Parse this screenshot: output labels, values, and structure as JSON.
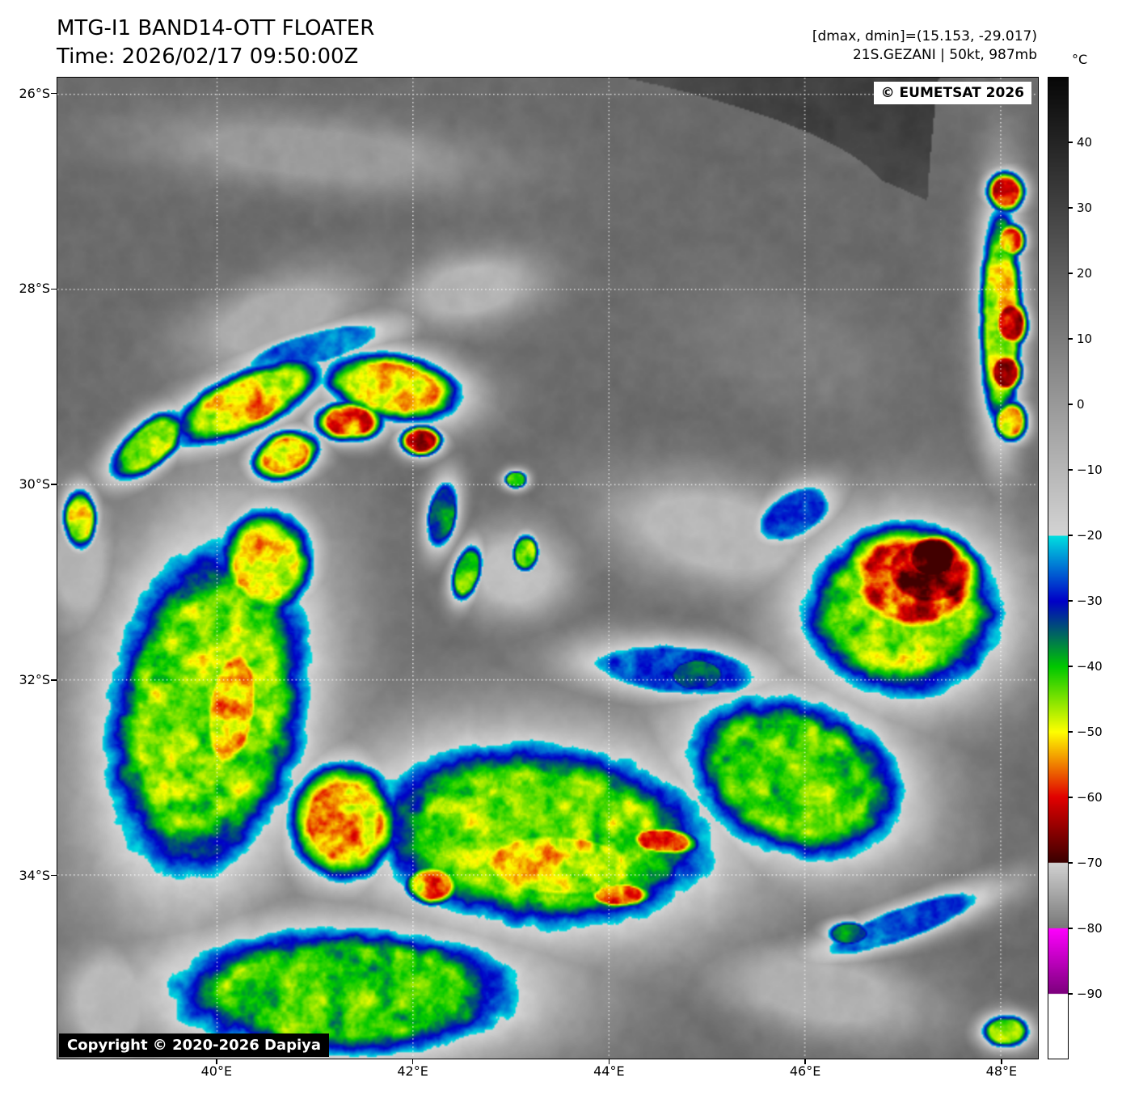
{
  "header": {
    "title": "MTG-I1 BAND14-OTT FLOATER",
    "time_line": "Time: 2026/02/17 09:50:00Z",
    "dmax_dmin": "[dmax, dmin]=(15.153, -29.017)",
    "storm_info": "21S.GEZANI | 50kt, 987mb"
  },
  "map": {
    "eumetsat_credit": "© EUMETSAT 2026",
    "copyright": "Copyright © 2020-2026 Dapiya",
    "lat_ticks": [
      {
        "v": 26,
        "label": "26°S"
      },
      {
        "v": 28,
        "label": "28°S"
      },
      {
        "v": 30,
        "label": "30°S"
      },
      {
        "v": 32,
        "label": "32°S"
      },
      {
        "v": 34,
        "label": "34°S"
      }
    ],
    "lon_ticks": [
      {
        "v": 40,
        "label": "40°E"
      },
      {
        "v": 42,
        "label": "42°E"
      },
      {
        "v": 44,
        "label": "44°E"
      },
      {
        "v": 46,
        "label": "46°E"
      },
      {
        "v": 48,
        "label": "48°E"
      }
    ]
  },
  "colorbar": {
    "unit": "°C",
    "domain_top_c": 50,
    "domain_bottom_c": -100,
    "ticks": [
      {
        "v": 40,
        "label": "40"
      },
      {
        "v": 30,
        "label": "30"
      },
      {
        "v": 20,
        "label": "20"
      },
      {
        "v": 10,
        "label": "10"
      },
      {
        "v": 0,
        "label": "0"
      },
      {
        "v": -10,
        "label": "−10"
      },
      {
        "v": -20,
        "label": "−20"
      },
      {
        "v": -30,
        "label": "−30"
      },
      {
        "v": -40,
        "label": "−40"
      },
      {
        "v": -50,
        "label": "−50"
      },
      {
        "v": -60,
        "label": "−60"
      },
      {
        "v": -70,
        "label": "−70"
      },
      {
        "v": -80,
        "label": "−80"
      },
      {
        "v": -90,
        "label": "−90"
      }
    ],
    "segments": [
      {
        "from": 50,
        "to": -20,
        "start": "#080808",
        "end": "#d4d4d4"
      },
      {
        "from": -20,
        "to": -30,
        "start": "#00e0e0",
        "end": "#0000c8"
      },
      {
        "from": -30,
        "to": -40,
        "start": "#0000c8",
        "end": "#00c800"
      },
      {
        "from": -40,
        "to": -50,
        "start": "#00c800",
        "end": "#ffff00"
      },
      {
        "from": -50,
        "to": -60,
        "start": "#ffff00",
        "end": "#e10000"
      },
      {
        "from": -60,
        "to": -70,
        "start": "#e10000",
        "end": "#3a0000"
      },
      {
        "from": -70,
        "to": -80,
        "start": "#d2d2d2",
        "end": "#787878"
      },
      {
        "from": -80,
        "to": -90,
        "start": "#ff00ff",
        "end": "#7d007d"
      },
      {
        "from": -90,
        "to": -100,
        "start": "#ffffff",
        "end": "#ffffff"
      }
    ]
  },
  "chart_data": {
    "type": "heatmap",
    "subtype": "infrared-brightness-temperature",
    "title": "MTG-I1 BAND14-OTT FLOATER",
    "storm": "21S.GEZANI",
    "intensity": "50kt, 987mb",
    "extent": {
      "lon_min": 38.37,
      "lon_max": 48.38,
      "lat_s_min": 25.83,
      "lat_s_max": 35.88
    },
    "grid": "dotted white graticule every 2 degrees",
    "background_temp_c": 30,
    "temp_gradient_per_deg_lat": 1.2,
    "features": [
      {
        "lon": 41.0,
        "lat": 26.6,
        "rx": 2.4,
        "ry": 0.5,
        "rot": 5,
        "t": 0
      },
      {
        "lon": 40.6,
        "lat": 28.3,
        "rx": 1.3,
        "ry": 0.55,
        "rot": -20,
        "t": -6
      },
      {
        "lon": 42.6,
        "lat": 28.0,
        "rx": 1.0,
        "ry": 0.5,
        "rot": -10,
        "t": -9
      },
      {
        "lon": 45.8,
        "lat": 28.6,
        "rx": 1.6,
        "ry": 0.8,
        "rot": 20,
        "t": 10
      },
      {
        "lon": 45.1,
        "lat": 30.5,
        "rx": 1.6,
        "ry": 0.75,
        "rot": 12,
        "t": -10
      },
      {
        "lon": 43.05,
        "lat": 30.9,
        "rx": 0.75,
        "ry": 0.65,
        "rot": 0,
        "t": -13
      },
      {
        "lon": 46.6,
        "lat": 31.8,
        "rx": 0.5,
        "ry": 0.45,
        "rot": 0,
        "t": -8
      },
      {
        "lon": 38.6,
        "lat": 30.8,
        "rx": 0.5,
        "ry": 1.0,
        "rot": 0,
        "t": -9
      },
      {
        "lon": 38.9,
        "lat": 35.3,
        "rx": 0.7,
        "ry": 0.8,
        "rot": 0,
        "t": -10
      },
      {
        "lon": 46.2,
        "lat": 35.2,
        "rx": 1.5,
        "ry": 0.6,
        "rot": 10,
        "t": -8
      },
      {
        "lon": 39.9,
        "lat": 32.3,
        "rx": 1.5,
        "ry": 2.6,
        "rot": 10,
        "t": -45
      },
      {
        "lon": 43.3,
        "lat": 33.6,
        "rx": 2.6,
        "ry": 1.4,
        "rot": 5,
        "t": -44
      },
      {
        "lon": 41.3,
        "lat": 35.2,
        "rx": 2.7,
        "ry": 1.0,
        "rot": 0,
        "t": -42
      },
      {
        "lon": 45.9,
        "lat": 33.0,
        "rx": 1.7,
        "ry": 1.2,
        "rot": 20,
        "t": -43
      },
      {
        "lon": 47.0,
        "lat": 31.3,
        "rx": 1.5,
        "ry": 1.3,
        "rot": 0,
        "t": -45
      },
      {
        "lon": 40.5,
        "lat": 30.8,
        "rx": 0.7,
        "ry": 0.8,
        "rot": 0,
        "t": -50
      },
      {
        "lon": 40.7,
        "lat": 29.7,
        "rx": 0.5,
        "ry": 0.35,
        "rot": -20,
        "t": -55
      },
      {
        "lon": 40.3,
        "lat": 29.15,
        "rx": 1.2,
        "ry": 0.45,
        "rot": -25,
        "t": -50
      },
      {
        "lon": 41.8,
        "lat": 29.0,
        "rx": 1.0,
        "ry": 0.5,
        "rot": 10,
        "t": -52
      },
      {
        "lon": 42.08,
        "lat": 29.55,
        "rx": 0.3,
        "ry": 0.22,
        "rot": 0,
        "t": -64
      },
      {
        "lon": 41.35,
        "lat": 29.35,
        "rx": 0.5,
        "ry": 0.3,
        "rot": 0,
        "t": -57
      },
      {
        "lon": 39.3,
        "lat": 29.6,
        "rx": 0.7,
        "ry": 0.35,
        "rot": -40,
        "t": -45
      },
      {
        "lon": 41.0,
        "lat": 28.6,
        "rx": 1.3,
        "ry": 0.3,
        "rot": -15,
        "t": -25
      },
      {
        "lon": 40.15,
        "lat": 32.3,
        "rx": 0.45,
        "ry": 1.1,
        "rot": 8,
        "t": -53
      },
      {
        "lon": 41.3,
        "lat": 33.45,
        "rx": 0.8,
        "ry": 0.85,
        "rot": 0,
        "t": -54
      },
      {
        "lon": 43.5,
        "lat": 33.9,
        "rx": 1.5,
        "ry": 0.6,
        "rot": 3,
        "t": -50
      },
      {
        "lon": 44.55,
        "lat": 33.65,
        "rx": 0.55,
        "ry": 0.22,
        "rot": 5,
        "t": -57
      },
      {
        "lon": 44.1,
        "lat": 34.2,
        "rx": 0.5,
        "ry": 0.2,
        "rot": 0,
        "t": -55
      },
      {
        "lon": 42.2,
        "lat": 34.1,
        "rx": 0.4,
        "ry": 0.3,
        "rot": 0,
        "t": -54
      },
      {
        "lon": 47.3,
        "lat": 30.75,
        "rx": 0.45,
        "ry": 0.35,
        "rot": 0,
        "t": -74
      },
      {
        "lon": 47.25,
        "lat": 30.9,
        "rx": 0.8,
        "ry": 0.6,
        "rot": 10,
        "t": -66
      },
      {
        "lon": 47.1,
        "lat": 31.0,
        "rx": 1.1,
        "ry": 0.85,
        "rot": 10,
        "t": -58
      },
      {
        "lon": 45.9,
        "lat": 30.3,
        "rx": 0.7,
        "ry": 0.4,
        "rot": -30,
        "t": -28
      },
      {
        "lon": 48.0,
        "lat": 28.3,
        "rx": 0.32,
        "ry": 1.7,
        "rot": 0,
        "t": -48
      },
      {
        "lon": 48.05,
        "lat": 27.0,
        "rx": 0.27,
        "ry": 0.3,
        "rot": 0,
        "t": -60
      },
      {
        "lon": 48.1,
        "lat": 27.5,
        "rx": 0.22,
        "ry": 0.25,
        "rot": 0,
        "t": -58
      },
      {
        "lon": 48.1,
        "lat": 28.35,
        "rx": 0.25,
        "ry": 0.35,
        "rot": 0,
        "t": -63
      },
      {
        "lon": 48.05,
        "lat": 28.85,
        "rx": 0.25,
        "ry": 0.3,
        "rot": 0,
        "t": -60
      },
      {
        "lon": 48.1,
        "lat": 29.35,
        "rx": 0.25,
        "ry": 0.3,
        "rot": 0,
        "t": -56
      },
      {
        "lon": 44.7,
        "lat": 31.9,
        "rx": 1.5,
        "ry": 0.45,
        "rot": 5,
        "t": -27
      },
      {
        "lon": 44.9,
        "lat": 31.95,
        "rx": 0.5,
        "ry": 0.3,
        "rot": 0,
        "t": -33
      },
      {
        "lon": 43.05,
        "lat": 29.95,
        "rx": 0.18,
        "ry": 0.14,
        "rot": 0,
        "t": -40
      },
      {
        "lon": 43.15,
        "lat": 30.7,
        "rx": 0.2,
        "ry": 0.28,
        "rot": 0,
        "t": -46
      },
      {
        "lon": 42.55,
        "lat": 30.9,
        "rx": 0.22,
        "ry": 0.45,
        "rot": 15,
        "t": -42
      },
      {
        "lon": 42.3,
        "lat": 30.3,
        "rx": 0.25,
        "ry": 0.55,
        "rot": 10,
        "t": -35
      },
      {
        "lon": 38.6,
        "lat": 30.35,
        "rx": 0.25,
        "ry": 0.45,
        "rot": 0,
        "t": -48
      },
      {
        "lon": 47.0,
        "lat": 34.5,
        "rx": 1.5,
        "ry": 0.3,
        "rot": -20,
        "t": -26
      },
      {
        "lon": 46.45,
        "lat": 34.6,
        "rx": 0.35,
        "ry": 0.2,
        "rot": 0,
        "t": -35
      },
      {
        "lon": 48.05,
        "lat": 35.6,
        "rx": 0.35,
        "ry": 0.25,
        "rot": 0,
        "t": -45
      }
    ]
  }
}
